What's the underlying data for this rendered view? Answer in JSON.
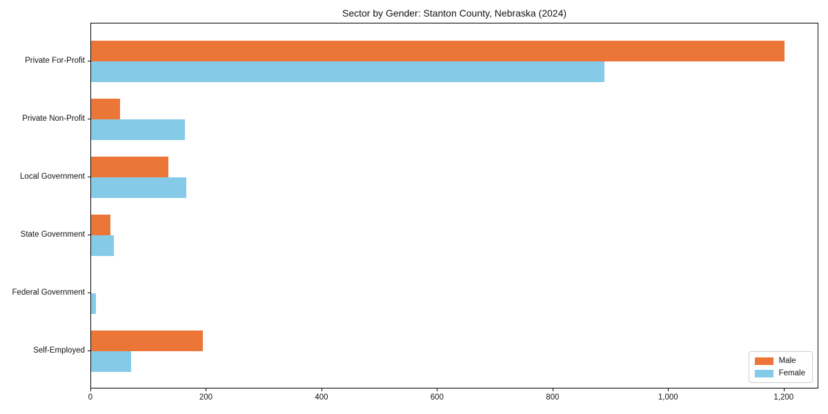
{
  "chart_data": {
    "type": "bar",
    "orientation": "horizontal",
    "title": "Sector by Gender: Stanton County, Nebraska (2024)",
    "categories": [
      "Private For-Profit",
      "Private Non-Profit",
      "Local Government",
      "State Government",
      "Federal Government",
      "Self-Employed"
    ],
    "series": [
      {
        "name": "Male",
        "color": "#EC7637",
        "values": [
          1200,
          50,
          134,
          33,
          0,
          193
        ]
      },
      {
        "name": "Female",
        "color": "#85CBE8",
        "values": [
          889,
          163,
          165,
          40,
          8,
          69
        ]
      }
    ],
    "xlabel": "",
    "ylabel": "",
    "xlim": [
      0,
      1260
    ],
    "x_tick_values": [
      0,
      200,
      400,
      600,
      800,
      1000,
      1200
    ],
    "x_tick_labels": [
      "0",
      "200",
      "400",
      "600",
      "800",
      "1,000",
      "1,200"
    ],
    "grid": false,
    "legend_position": "lower right",
    "colors": {
      "male": "#EC7637",
      "female": "#85CBE8",
      "axis": "#000000",
      "background": "#ffffff",
      "legend_border": "#cccccc"
    }
  }
}
